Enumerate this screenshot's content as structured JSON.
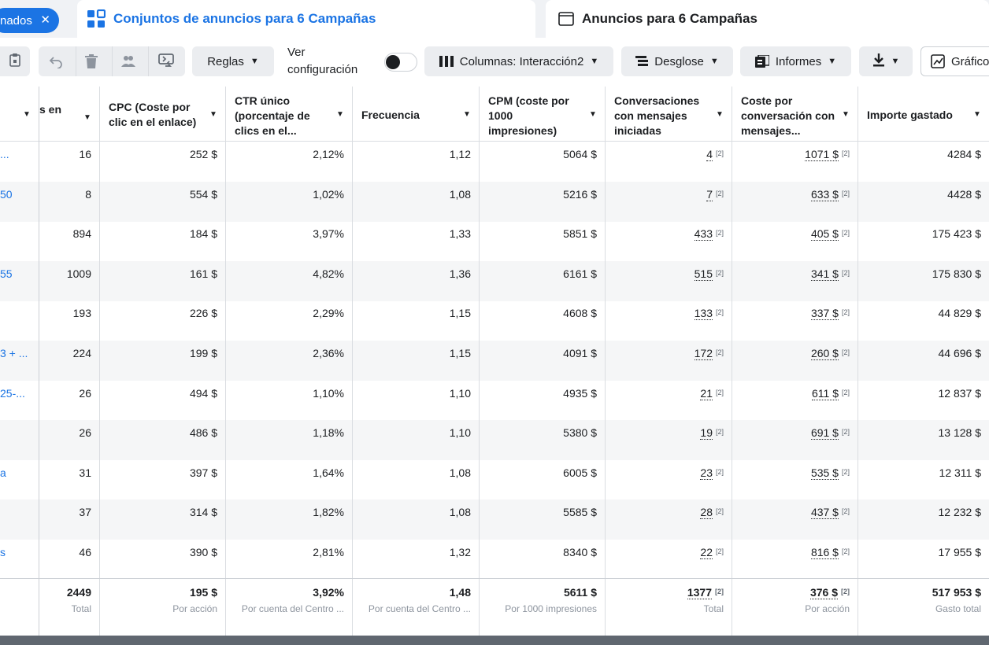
{
  "tabs": {
    "selected_pill": "nados",
    "active": "Conjuntos de anuncios para 6 Campañas",
    "inactive": "Anuncios para 6 Campañas"
  },
  "toolbar": {
    "rules": "Reglas",
    "view_label_1": "Ver",
    "view_label_2": "configuración",
    "columns": "Columnas: Interacción2",
    "breakdown": "Desglose",
    "reports": "Informes",
    "chart": "Gráfico"
  },
  "headers": [
    "s en",
    "CPC (Coste por clic en el enlace)",
    "CTR único (porcentaje de clics en el...",
    "Frecuencia",
    "CPM (coste por 1000 impresiones)",
    "Conversaciones con mensajes iniciadas",
    "Coste por conversación con mensajes...",
    "Importe gastado"
  ],
  "rows": [
    {
      "name": "...",
      "results": "16",
      "cpc": "252 $",
      "ctr": "2,12%",
      "freq": "1,12",
      "cpm": "5064 $",
      "conv": "4",
      "cost": "1071 $",
      "spent": "4284 $"
    },
    {
      "name": "50",
      "results": "8",
      "cpc": "554 $",
      "ctr": "1,02%",
      "freq": "1,08",
      "cpm": "5216 $",
      "conv": "7",
      "cost": "633 $",
      "spent": "4428 $"
    },
    {
      "name": "",
      "results": "894",
      "cpc": "184 $",
      "ctr": "3,97%",
      "freq": "1,33",
      "cpm": "5851 $",
      "conv": "433",
      "cost": "405 $",
      "spent": "175 423 $"
    },
    {
      "name": "55",
      "results": "1009",
      "cpc": "161 $",
      "ctr": "4,82%",
      "freq": "1,36",
      "cpm": "6161 $",
      "conv": "515",
      "cost": "341 $",
      "spent": "175 830 $"
    },
    {
      "name": "",
      "results": "193",
      "cpc": "226 $",
      "ctr": "2,29%",
      "freq": "1,15",
      "cpm": "4608 $",
      "conv": "133",
      "cost": "337 $",
      "spent": "44 829 $"
    },
    {
      "name": "3 + ...",
      "results": "224",
      "cpc": "199 $",
      "ctr": "2,36%",
      "freq": "1,15",
      "cpm": "4091 $",
      "conv": "172",
      "cost": "260 $",
      "spent": "44 696 $"
    },
    {
      "name": "25-...",
      "results": "26",
      "cpc": "494 $",
      "ctr": "1,10%",
      "freq": "1,10",
      "cpm": "4935 $",
      "conv": "21",
      "cost": "611 $",
      "spent": "12 837 $"
    },
    {
      "name": "",
      "results": "26",
      "cpc": "486 $",
      "ctr": "1,18%",
      "freq": "1,10",
      "cpm": "5380 $",
      "conv": "19",
      "cost": "691 $",
      "spent": "13 128 $"
    },
    {
      "name": "a",
      "results": "31",
      "cpc": "397 $",
      "ctr": "1,64%",
      "freq": "1,08",
      "cpm": "6005 $",
      "conv": "23",
      "cost": "535 $",
      "spent": "12 311 $"
    },
    {
      "name": "",
      "results": "37",
      "cpc": "314 $",
      "ctr": "1,82%",
      "freq": "1,08",
      "cpm": "5585 $",
      "conv": "28",
      "cost": "437 $",
      "spent": "12 232 $"
    },
    {
      "name": "s",
      "results": "46",
      "cpc": "390 $",
      "ctr": "2,81%",
      "freq": "1,32",
      "cpm": "8340 $",
      "conv": "22",
      "cost": "816 $",
      "spent": "17 955 $"
    }
  ],
  "sup": "[2]",
  "totals": {
    "results": {
      "value": "2449",
      "label": "Total"
    },
    "cpc": {
      "value": "195 $",
      "label": "Por acción"
    },
    "ctr": {
      "value": "3,92%",
      "label": "Por cuenta del Centro ..."
    },
    "freq": {
      "value": "1,48",
      "label": "Por cuenta del Centro ..."
    },
    "cpm": {
      "value": "5611 $",
      "label": "Por 1000 impresiones"
    },
    "conv": {
      "value": "1377",
      "label": "Total"
    },
    "cost": {
      "value": "376 $",
      "label": "Por acción"
    },
    "spent": {
      "value": "517 953 $",
      "label": "Gasto total"
    }
  }
}
